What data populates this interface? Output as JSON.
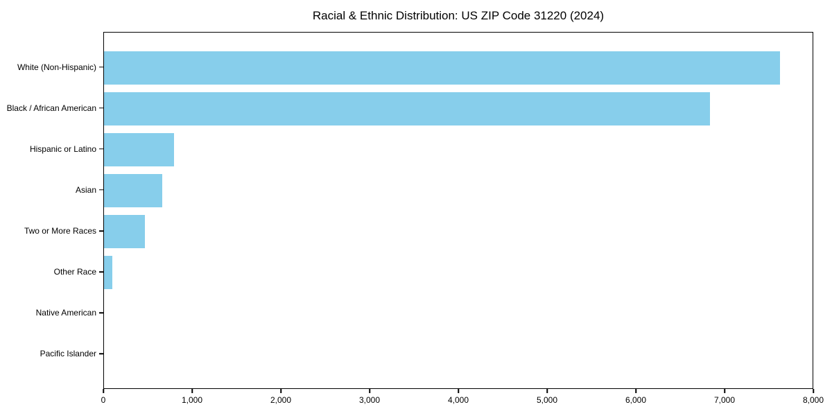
{
  "title": "Racial & Ethnic Distribution: US ZIP Code 31220 (2024)",
  "chart_data": {
    "type": "bar",
    "orientation": "horizontal",
    "title": "Racial & Ethnic Distribution: US ZIP Code 31220 (2024)",
    "categories": [
      "White (Non-Hispanic)",
      "Black / African American",
      "Hispanic or Latino",
      "Asian",
      "Two or More Races",
      "Other Race",
      "Native American",
      "Pacific Islander"
    ],
    "values": [
      7620,
      6830,
      790,
      655,
      460,
      95,
      0,
      0
    ],
    "xlabel": "",
    "ylabel": "",
    "xlim": [
      0,
      8000
    ],
    "xticks": [
      0,
      1000,
      2000,
      3000,
      4000,
      5000,
      6000,
      7000,
      8000
    ],
    "xtick_labels": [
      "0",
      "1,000",
      "2,000",
      "3,000",
      "4,000",
      "5,000",
      "6,000",
      "7,000",
      "8,000"
    ],
    "bar_color": "#87CEEB",
    "text_color": "#000000",
    "spine_color": "#000000",
    "background_color": "#ffffff",
    "grid": false,
    "legend": null
  }
}
